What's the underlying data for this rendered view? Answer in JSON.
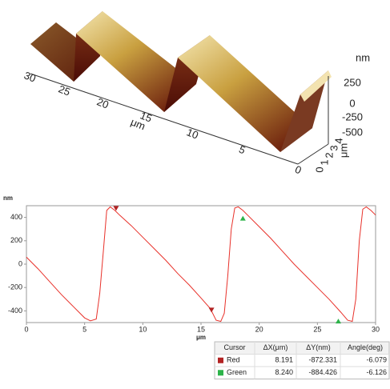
{
  "surface": {
    "z_label": "nm",
    "z_ticks": [
      250,
      0,
      -250,
      -500
    ],
    "x_label": "μm",
    "x_ticks": [
      30,
      25,
      20,
      15,
      10,
      5,
      0
    ],
    "y_label": "μm",
    "y_ticks": [
      0,
      1,
      2,
      3,
      4
    ]
  },
  "chart_data": {
    "type": "line",
    "y_label": "nm",
    "x_label": "μm",
    "x": [
      0,
      1,
      2,
      3,
      4,
      5,
      5.5,
      6,
      6.3,
      6.6,
      6.9,
      7.2,
      7.6,
      8,
      9,
      10,
      11,
      12,
      13,
      14,
      15,
      15.8,
      16.3,
      16.7,
      17,
      17.3,
      17.6,
      17.9,
      18.2,
      18.6,
      19,
      20,
      21,
      22,
      23,
      24,
      25,
      26,
      27,
      27.6,
      28.0,
      28.3,
      28.6,
      28.9,
      29.2,
      29.6,
      30
    ],
    "series": [
      {
        "color": "#e8312a",
        "values": [
          60,
          -40,
          -150,
          -260,
          -360,
          -460,
          -485,
          -470,
          -250,
          100,
          460,
          490,
          460,
          420,
          330,
          230,
          130,
          30,
          -80,
          -180,
          -290,
          -380,
          -480,
          -490,
          -420,
          -100,
          300,
          480,
          490,
          460,
          420,
          320,
          220,
          110,
          0,
          -100,
          -200,
          -300,
          -410,
          -480,
          -490,
          -300,
          200,
          470,
          490,
          460,
          420
        ]
      }
    ],
    "cursors": [
      {
        "color": "#b22222",
        "marker": "triangle-down",
        "x": [
          7.7,
          15.9
        ],
        "values": [
          470,
          -400
        ]
      },
      {
        "color": "#2db34a",
        "marker": "triangle-up",
        "x": [
          18.6,
          26.8
        ],
        "values": [
          400,
          -480
        ]
      }
    ],
    "xlim": [
      0,
      30
    ],
    "ylim": [
      -500,
      500
    ],
    "xticks": [
      0,
      5,
      10,
      15,
      20,
      25,
      30
    ],
    "yticks": [
      -400,
      -200,
      0,
      200,
      400
    ],
    "grid": false
  },
  "cursor_table": {
    "header": [
      "Cursor",
      "ΔX(μm)",
      "ΔY(nm)",
      "Angle(deg)"
    ],
    "rows": [
      [
        "Red",
        "8.191",
        "-872.331",
        "-6.079"
      ],
      [
        "Green",
        "8.240",
        "-884.426",
        "-6.126"
      ]
    ]
  }
}
